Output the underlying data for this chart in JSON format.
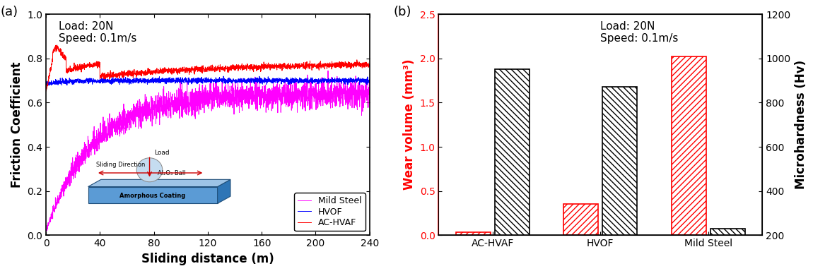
{
  "panel_a": {
    "title_text": "Load: 20N\nSpeed: 0.1m/s",
    "xlabel": "Sliding distance (m)",
    "ylabel": "Friction Coefficient",
    "xlim": [
      0,
      240
    ],
    "ylim": [
      0.0,
      1.0
    ],
    "xticks": [
      0,
      40,
      80,
      120,
      160,
      200,
      240
    ],
    "yticks": [
      0.0,
      0.2,
      0.4,
      0.6,
      0.8,
      1.0
    ],
    "mild_steel_color": "#FF00FF",
    "hvof_color": "#0000FF",
    "achvaf_color": "#FF0000",
    "label": "(a)"
  },
  "panel_b": {
    "title_text": "Load: 20N\nSpeed: 0.1m/s",
    "xlabel_categories": [
      "AC-HVAF",
      "HVOF",
      "Mild Steel"
    ],
    "ylabel_left": "Wear volume (mm³)",
    "ylabel_right": "Microhardness (Hv)",
    "ylim_left": [
      0.0,
      2.5
    ],
    "ylim_right": [
      200,
      1200
    ],
    "yticks_left": [
      0.0,
      0.5,
      1.0,
      1.5,
      2.0,
      2.5
    ],
    "yticks_right": [
      200,
      400,
      600,
      800,
      1000,
      1200
    ],
    "wear_volume": [
      0.03,
      0.35,
      2.02
    ],
    "microhardness": [
      950,
      870,
      230
    ],
    "wear_color": "#FF0000",
    "hardness_color": "#000000",
    "label": "(b)"
  },
  "background_color": "#FFFFFF",
  "fontsize_label": 12,
  "fontsize_tick": 10,
  "fontsize_annot": 11,
  "fontsize_legend": 9,
  "seed": 42
}
